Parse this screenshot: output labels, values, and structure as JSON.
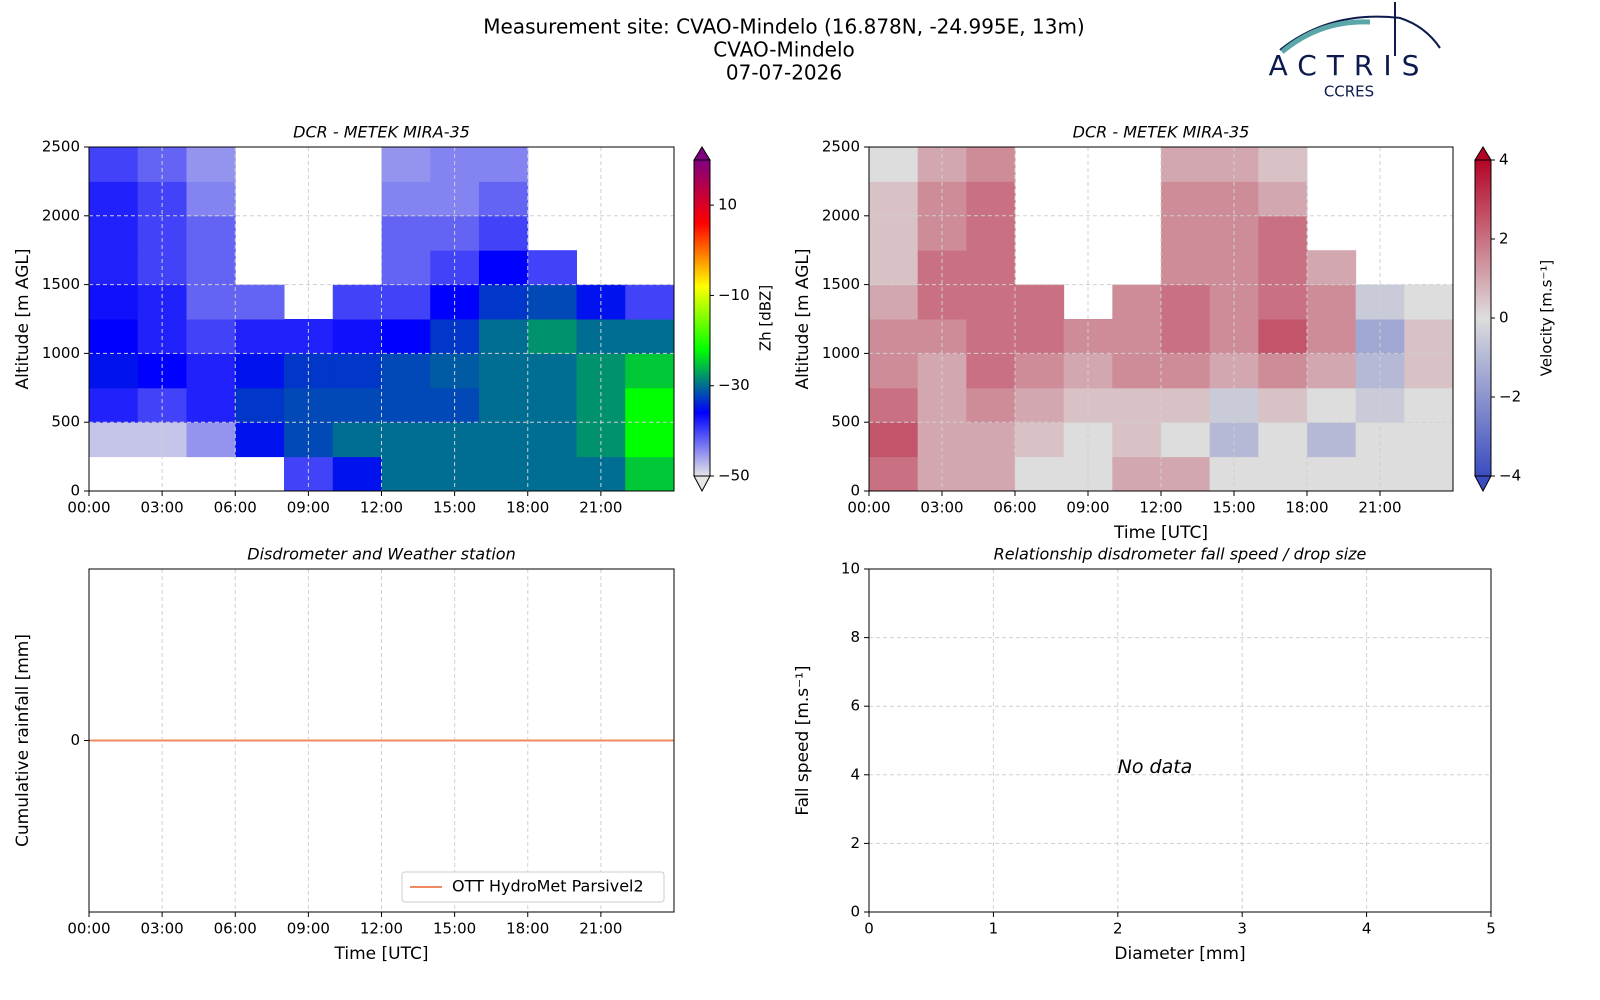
{
  "header": {
    "lines": [
      "Measurement site: CVAO-Mindelo (16.878N, -24.995E, 13m)",
      "CVAO-Mindelo",
      "07-07-2026"
    ],
    "logo": "ACTRIS",
    "logo_sub": "CCRES"
  },
  "chart_data": [
    {
      "type": "heatmap",
      "title": "DCR - METEK MIRA-35",
      "ylabel": "Altitude [m AGL]",
      "clabel": "Zh [dBZ]",
      "x": [
        0,
        2,
        4,
        6,
        8,
        10,
        12,
        14,
        16,
        18,
        20,
        22
      ],
      "y": [
        0,
        250,
        500,
        750,
        1000,
        1250,
        1500,
        1750,
        2000,
        2250
      ],
      "values": [
        [
          null,
          null,
          null,
          null,
          -40,
          -35,
          -30,
          -30,
          -30,
          -30,
          -30,
          -25
        ],
        [
          -48,
          -48,
          -45,
          -35,
          -32,
          -30,
          -30,
          -30,
          -30,
          -30,
          -28,
          -22
        ],
        [
          -38,
          -40,
          -38,
          -33,
          -32,
          -32,
          -32,
          -32,
          -30,
          -30,
          -28,
          -22
        ],
        [
          -35,
          -36,
          -38,
          -35,
          -33,
          -33,
          -32,
          -31,
          -30,
          -30,
          -28,
          -25
        ],
        [
          -36,
          -38,
          -40,
          -38,
          -38,
          -37,
          -36,
          -33,
          -30,
          -28,
          -30,
          -30
        ],
        [
          -37,
          -38,
          -42,
          -42,
          null,
          -40,
          -40,
          -36,
          -33,
          -32,
          -35,
          -40
        ],
        [
          -38,
          -40,
          -42,
          null,
          null,
          null,
          -42,
          -40,
          -36,
          -40,
          null,
          null
        ],
        [
          -38,
          -40,
          -42,
          null,
          null,
          null,
          -42,
          -42,
          -40,
          null,
          null,
          null
        ],
        [
          -38,
          -40,
          -44,
          null,
          null,
          null,
          -44,
          -44,
          -42,
          null,
          null,
          null
        ],
        [
          -40,
          -42,
          -45,
          null,
          null,
          null,
          -45,
          -44,
          -44,
          null,
          null,
          null
        ]
      ],
      "xlim": [
        0,
        24
      ],
      "ylim": [
        0,
        2500
      ],
      "xticks": [
        {
          "value": 0,
          "label": "00:00"
        },
        {
          "value": 3,
          "label": "03:00"
        },
        {
          "value": 6,
          "label": "06:00"
        },
        {
          "value": 9,
          "label": "09:00"
        },
        {
          "value": 12,
          "label": "12:00"
        },
        {
          "value": 15,
          "label": "15:00"
        },
        {
          "value": 18,
          "label": "18:00"
        },
        {
          "value": 21,
          "label": "21:00"
        }
      ],
      "yticks": [
        0,
        500,
        1000,
        1500,
        2000,
        2500
      ],
      "clim": [
        -50,
        20
      ],
      "cticks": [
        {
          "value": -50,
          "label": "−50"
        },
        {
          "value": -30,
          "label": "−30"
        },
        {
          "value": -10,
          "label": "−10"
        },
        10
      ],
      "colors": [
        "#e6e6e6",
        "#0000ff",
        "#00ff00",
        "#ffff00",
        "#ff0000",
        "#800080"
      ],
      "grid": true
    },
    {
      "type": "heatmap",
      "title": "DCR - METEK MIRA-35",
      "xlabel": "Time [UTC]",
      "ylabel": "Altitude [m AGL]",
      "clabel": "Velocity [m.s⁻¹]",
      "x": [
        0,
        2,
        4,
        6,
        8,
        10,
        12,
        14,
        16,
        18,
        20,
        22
      ],
      "y": [
        0,
        250,
        500,
        750,
        1000,
        1250,
        1500,
        1750,
        2000,
        2250
      ],
      "values": [
        [
          2,
          1,
          1,
          0,
          0,
          1,
          1,
          0,
          0,
          0,
          0,
          0
        ],
        [
          2.5,
          1,
          1,
          0.5,
          0,
          0.5,
          0,
          -1,
          0,
          -1,
          0,
          0
        ],
        [
          2,
          1,
          1.5,
          1,
          0.5,
          0.5,
          0.5,
          -0.5,
          0.5,
          0,
          -0.5,
          0
        ],
        [
          1.5,
          1,
          2,
          1.5,
          1,
          1.5,
          1.5,
          1,
          1.5,
          1,
          -1,
          0.5
        ],
        [
          1.5,
          1.5,
          2,
          2,
          1.5,
          1.5,
          2,
          1.5,
          2.5,
          1.5,
          -1.5,
          0.5
        ],
        [
          1,
          2,
          2,
          2,
          null,
          1.5,
          2,
          1.5,
          2,
          1.5,
          -0.5,
          0
        ],
        [
          0.5,
          2,
          2,
          null,
          null,
          null,
          1.5,
          1.5,
          2,
          1,
          null,
          null
        ],
        [
          0.5,
          1.5,
          2,
          null,
          null,
          null,
          1.5,
          1.5,
          2,
          null,
          null,
          null
        ],
        [
          0.5,
          1.5,
          2,
          null,
          null,
          null,
          1.5,
          1.5,
          1,
          null,
          null,
          null
        ],
        [
          0,
          1,
          1.5,
          null,
          null,
          null,
          1,
          1,
          0.5,
          null,
          null,
          null
        ]
      ],
      "xlim": [
        0,
        24
      ],
      "ylim": [
        0,
        2500
      ],
      "xticks": [
        {
          "value": 0,
          "label": "00:00"
        },
        {
          "value": 3,
          "label": "03:00"
        },
        {
          "value": 6,
          "label": "06:00"
        },
        {
          "value": 9,
          "label": "09:00"
        },
        {
          "value": 12,
          "label": "12:00"
        },
        {
          "value": 15,
          "label": "15:00"
        },
        {
          "value": 18,
          "label": "18:00"
        },
        {
          "value": 21,
          "label": "21:00"
        }
      ],
      "yticks": [
        0,
        500,
        1000,
        1500,
        2000,
        2500
      ],
      "clim": [
        -4,
        4
      ],
      "cticks": [
        {
          "value": -4,
          "label": "−4"
        },
        {
          "value": -2,
          "label": "−2"
        },
        0,
        2,
        4
      ],
      "colors": [
        "#3b4cc0",
        "#dddddd",
        "#b40426"
      ],
      "grid": true
    },
    {
      "type": "line",
      "title": "Disdrometer and Weather station",
      "xlabel": "Time [UTC]",
      "ylabel": "Cumulative rainfall [mm]",
      "x": [
        0,
        24
      ],
      "series": [
        {
          "name": "OTT HydroMet Parsivel2",
          "color": "#ef8a62",
          "values": [
            0,
            0
          ]
        }
      ],
      "xlim": [
        0,
        24
      ],
      "ylim": [
        -0.05,
        0.05
      ],
      "xticks": [
        {
          "value": 0,
          "label": "00:00"
        },
        {
          "value": 3,
          "label": "03:00"
        },
        {
          "value": 6,
          "label": "06:00"
        },
        {
          "value": 9,
          "label": "09:00"
        },
        {
          "value": 12,
          "label": "12:00"
        },
        {
          "value": 15,
          "label": "15:00"
        },
        {
          "value": 18,
          "label": "18:00"
        },
        {
          "value": 21,
          "label": "21:00"
        }
      ],
      "yticks": [
        0
      ],
      "grid": true,
      "legend": "lower right"
    },
    {
      "type": "scatter",
      "title": "Relationship disdrometer fall speed / drop size",
      "xlabel": "Diameter [mm]",
      "ylabel": "Fall speed [m.s⁻¹]",
      "annotation": "No data",
      "xlim": [
        0,
        5
      ],
      "ylim": [
        0,
        10
      ],
      "xticks": [
        0,
        1,
        2,
        3,
        4,
        5
      ],
      "yticks": [
        0,
        2,
        4,
        6,
        8,
        10
      ],
      "grid": true
    }
  ]
}
